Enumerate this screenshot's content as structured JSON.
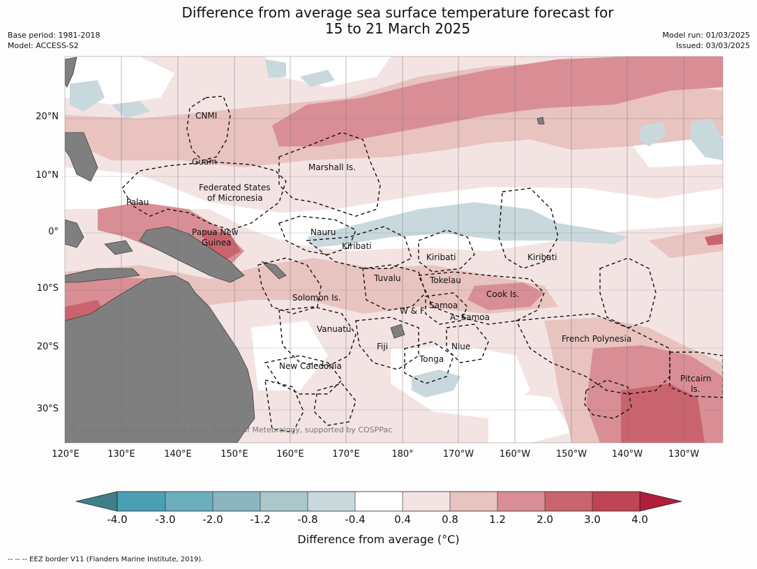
{
  "title": {
    "line1": "Difference from average sea surface temperature forecast for",
    "line2": "15 to 21 March 2025"
  },
  "meta": {
    "base_period": "Base period: 1981-2018",
    "model": "Model: ACCESS-S2",
    "model_run": "Model run: 01/03/2025",
    "issued": "Issued: 03/03/2025"
  },
  "axes": {
    "lat_labels": [
      "20°N",
      "10°N",
      "0°",
      "10°S",
      "20°S",
      "30°S"
    ],
    "lon_labels": [
      "120°E",
      "130°E",
      "140°E",
      "150°E",
      "160°E",
      "170°E",
      "180°",
      "170°W",
      "160°W",
      "150°W",
      "140°W",
      "130°W"
    ]
  },
  "regions": [
    {
      "name": "CNMI"
    },
    {
      "name": "Guam"
    },
    {
      "name": "Marshall Is."
    },
    {
      "name": "Federated States"
    },
    {
      "name": "of Micronesia"
    },
    {
      "name": "Palau"
    },
    {
      "name": "Nauru"
    },
    {
      "name": "Papua New"
    },
    {
      "name": "Guinea"
    },
    {
      "name": "Kiribati"
    },
    {
      "name": "Kiribati"
    },
    {
      "name": "Kiribati"
    },
    {
      "name": "Tuvalu"
    },
    {
      "name": "Tokelau"
    },
    {
      "name": "Cook Is."
    },
    {
      "name": "Solomon Is."
    },
    {
      "name": "Samoa"
    },
    {
      "name": "W & F"
    },
    {
      "name": "A. Samoa"
    },
    {
      "name": "Vanuatu"
    },
    {
      "name": "Fiji"
    },
    {
      "name": "Niue"
    },
    {
      "name": "French Polynesia"
    },
    {
      "name": "Tonga"
    },
    {
      "name": "New Caledonia"
    },
    {
      "name": "Pitcairn"
    },
    {
      "name": "Is."
    }
  ],
  "copyright": "© Commonwealth of Australia 2025, Bureau of Meteorology, supported by COSPPac",
  "colorbar": {
    "title": "Difference from average (°C)",
    "tick_labels": [
      "-4.0",
      "-3.0",
      "-2.0",
      "-1.2",
      "-0.8",
      "-0.4",
      "0.4",
      "0.8",
      "1.2",
      "2.0",
      "3.0",
      "4.0"
    ],
    "colors": [
      "#3f7f8c",
      "#4b9fb2",
      "#6daebd",
      "#8bb6c1",
      "#aac8cc",
      "#c8d8dd",
      "#ffffff",
      "#f3e4e3",
      "#e8c3c0",
      "#d98e95",
      "#c9646e",
      "#be4553",
      "#b11d3a"
    ]
  },
  "footnote": "-- -- -- EEZ border V11 (Flanders Marine Institute, 2019).",
  "palette": {
    "land": "#7f7f7f",
    "ocean_neutral": "#ffffff",
    "warm_1": "#f3e4e3",
    "warm_2": "#e8c3c0",
    "warm_3": "#d98e95",
    "warm_4": "#c9646e",
    "cool_1": "#c8d8dd"
  }
}
